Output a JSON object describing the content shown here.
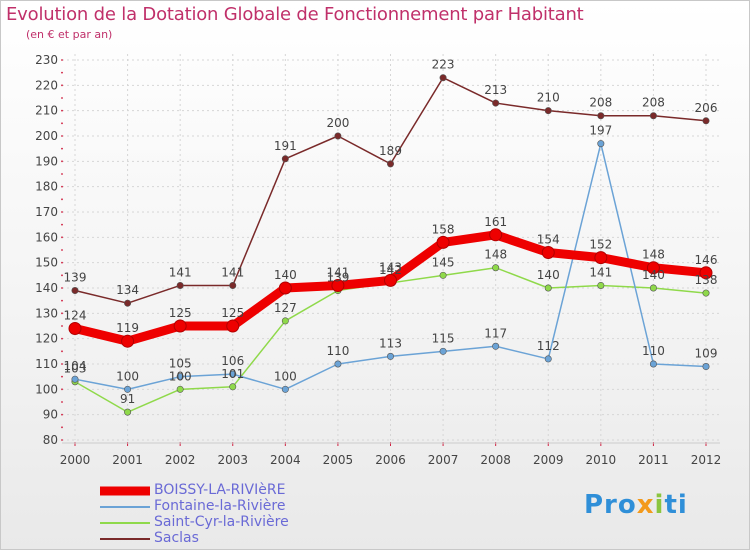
{
  "header": {
    "title": "Evolution de la Dotation Globale de Fonctionnement par Habitant",
    "subtitle": "(en € et par an)"
  },
  "brand": {
    "p1": "Pro",
    "p2": "x",
    "p3": "i",
    "p4": "ti"
  },
  "chart_data": {
    "type": "line",
    "title": "Evolution de la Dotation Globale de Fonctionnement par Habitant",
    "subtitle": "(en € et par an)",
    "x": [
      "2000",
      "2001",
      "2002",
      "2003",
      "2004",
      "2005",
      "2006",
      "2007",
      "2008",
      "2009",
      "2010",
      "2011",
      "2012"
    ],
    "ylim": [
      80,
      230
    ],
    "yticks": [
      80,
      90,
      100,
      110,
      120,
      130,
      140,
      150,
      160,
      170,
      180,
      190,
      200,
      210,
      220,
      230
    ],
    "grid": true,
    "legend_position": "bottom-left",
    "series": [
      {
        "name": "BOISSY-LA-RIVIèRE",
        "color": "#ee0000",
        "values": [
          124,
          119,
          125,
          125,
          140,
          141,
          143,
          158,
          161,
          154,
          152,
          148,
          146
        ]
      },
      {
        "name": "Fontaine-la-Rivière",
        "color": "#6ba3d6",
        "values": [
          104,
          100,
          105,
          106,
          100,
          110,
          113,
          115,
          117,
          112,
          197,
          110,
          109
        ]
      },
      {
        "name": "Saint-Cyr-la-Rivière",
        "color": "#8fd94a",
        "values": [
          103,
          91,
          100,
          101,
          127,
          139,
          142,
          145,
          148,
          140,
          141,
          140,
          138
        ]
      },
      {
        "name": "Saclas",
        "color": "#7a2a2a",
        "values": [
          139,
          134,
          141,
          141,
          191,
          200,
          189,
          223,
          213,
          210,
          208,
          208,
          206
        ]
      }
    ]
  }
}
